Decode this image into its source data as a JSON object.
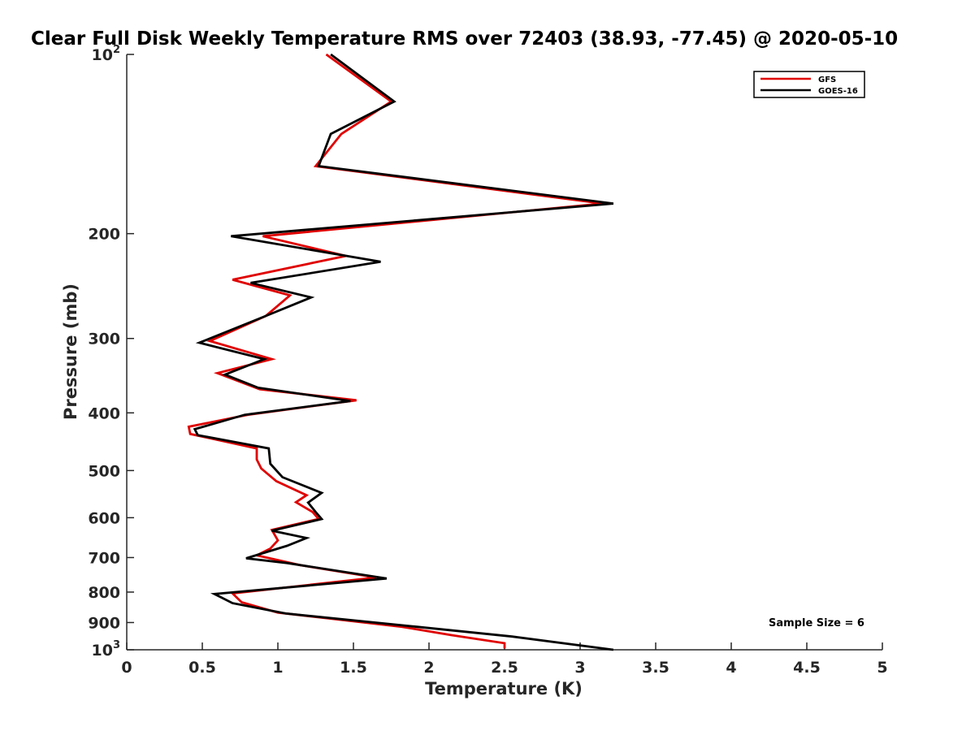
{
  "chart_data": {
    "type": "line",
    "title": "Clear Full Disk Weekly Temperature RMS over 72403 (38.93, -77.45) @ 2020-05-10",
    "xlabel": "Temperature (K)",
    "ylabel": "Pressure (mb)",
    "xlim": [
      0,
      5
    ],
    "ylim": [
      100,
      1000
    ],
    "yscale": "log",
    "y_reversed": true,
    "x_ticks": [
      0,
      0.5,
      1,
      1.5,
      2,
      2.5,
      3,
      3.5,
      4,
      4.5,
      5
    ],
    "x_tick_labels": [
      "0",
      "0.5",
      "1",
      "1.5",
      "2",
      "2.5",
      "3",
      "3.5",
      "4",
      "4.5",
      "5"
    ],
    "y_ticks": [
      100,
      200,
      300,
      400,
      500,
      600,
      700,
      800,
      900,
      1000
    ],
    "y_tick_labels": [
      {
        "base": "10",
        "exp": "2"
      },
      {
        "base": "200"
      },
      {
        "base": "300"
      },
      {
        "base": "400"
      },
      {
        "base": "500"
      },
      {
        "base": "600"
      },
      {
        "base": "700"
      },
      {
        "base": "800"
      },
      {
        "base": "900"
      },
      {
        "base": "10",
        "exp": "3"
      }
    ],
    "grid": false,
    "legend_position": "top-right",
    "annotation": "Sample Size = 6",
    "series": [
      {
        "name": "GFS",
        "color": "#e00000",
        "points": [
          [
            1.32,
            100
          ],
          [
            1.75,
            120
          ],
          [
            1.42,
            136
          ],
          [
            1.25,
            154
          ],
          [
            3.15,
            178
          ],
          [
            0.9,
            202
          ],
          [
            1.45,
            218
          ],
          [
            0.7,
            239
          ],
          [
            1.08,
            254
          ],
          [
            0.92,
            275
          ],
          [
            0.55,
            303
          ],
          [
            0.96,
            325
          ],
          [
            0.6,
            343
          ],
          [
            0.88,
            365
          ],
          [
            1.52,
            381
          ],
          [
            0.8,
            403
          ],
          [
            0.41,
            422
          ],
          [
            0.42,
            434
          ],
          [
            0.86,
            459
          ],
          [
            0.86,
            479
          ],
          [
            0.89,
            496
          ],
          [
            0.99,
            521
          ],
          [
            1.19,
            550
          ],
          [
            1.12,
            565
          ],
          [
            1.23,
            587
          ],
          [
            1.27,
            603
          ],
          [
            0.96,
            629
          ],
          [
            1.0,
            655
          ],
          [
            0.95,
            676
          ],
          [
            0.86,
            694
          ],
          [
            1.15,
            721
          ],
          [
            1.65,
            756
          ],
          [
            0.7,
            804
          ],
          [
            0.76,
            832
          ],
          [
            1.0,
            866
          ],
          [
            1.82,
            915
          ],
          [
            2.15,
            945
          ],
          [
            2.5,
            975
          ],
          [
            2.5,
            995
          ]
        ]
      },
      {
        "name": "GOES-16",
        "color": "#000000",
        "points": [
          [
            1.35,
            100
          ],
          [
            1.77,
            120
          ],
          [
            1.35,
            136
          ],
          [
            1.27,
            154
          ],
          [
            3.22,
            178
          ],
          [
            0.69,
            202
          ],
          [
            1.68,
            223
          ],
          [
            0.82,
            242
          ],
          [
            1.22,
            256
          ],
          [
            0.92,
            275
          ],
          [
            0.48,
            305
          ],
          [
            0.91,
            325
          ],
          [
            0.65,
            345
          ],
          [
            0.87,
            363
          ],
          [
            1.48,
            382
          ],
          [
            0.78,
            403
          ],
          [
            0.45,
            426
          ],
          [
            0.47,
            436
          ],
          [
            0.94,
            459
          ],
          [
            0.95,
            487
          ],
          [
            1.03,
            513
          ],
          [
            1.29,
            545
          ],
          [
            1.2,
            566
          ],
          [
            1.25,
            587
          ],
          [
            1.29,
            603
          ],
          [
            0.96,
            631
          ],
          [
            1.19,
            649
          ],
          [
            1.06,
            669
          ],
          [
            0.79,
            702
          ],
          [
            1.06,
            715
          ],
          [
            1.72,
            759
          ],
          [
            0.58,
            806
          ],
          [
            0.7,
            835
          ],
          [
            1.05,
            869
          ],
          [
            1.92,
            915
          ],
          [
            2.55,
            950
          ],
          [
            3.22,
            1000
          ]
        ]
      }
    ]
  }
}
